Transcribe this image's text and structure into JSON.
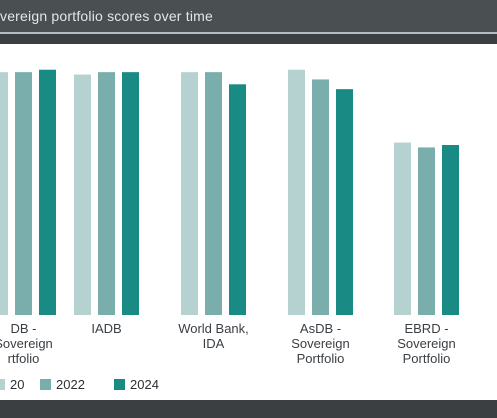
{
  "header": {
    "title": "vereign portfolio scores over time"
  },
  "colors": {
    "series_2020": "#b5d1d0",
    "series_2022": "#7aaeac",
    "series_2024": "#1a8a84"
  },
  "chart_data": {
    "type": "bar",
    "title": "vereign portfolio scores over time",
    "categories": [
      [
        "DB -",
        "Sovereign",
        "rtfolio"
      ],
      [
        "IADB"
      ],
      [
        "World Bank,",
        "IDA"
      ],
      [
        "AsDB -",
        "Sovereign",
        "Portfolio"
      ],
      [
        "EBRD -",
        "Sovereign",
        "Portfolio"
      ]
    ],
    "series": [
      {
        "name": "20",
        "values": [
          100,
          99,
          100,
          101,
          71
        ]
      },
      {
        "name": "2022",
        "values": [
          100,
          100,
          100,
          97,
          69
        ]
      },
      {
        "name": "2024",
        "values": [
          101,
          100,
          95,
          93,
          70
        ]
      }
    ],
    "ylim": [
      0,
      105
    ],
    "legend": "bottom-left",
    "grid": false
  }
}
